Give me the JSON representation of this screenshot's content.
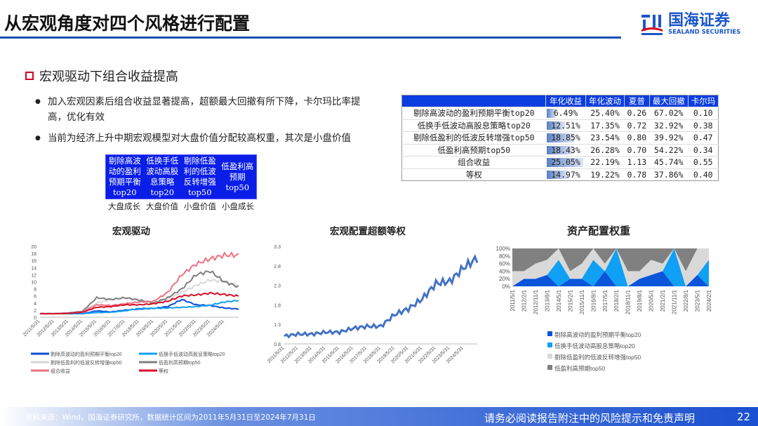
{
  "header": {
    "title": "从宏观角度对四个风格进行配置",
    "logo_cn": "国海证券",
    "logo_en": "SEALAND SECURITIES"
  },
  "subtitle": "宏观驱动下组合收益提高",
  "bullets": [
    "加入宏观因素后组合收益显著提高，超额最大回撤有所下降，卡尔玛比率提高，优化有效",
    "当前为经济上升中期宏观模型对大盘价值分配较高权重，其次是小盘价值"
  ],
  "style_boxes": [
    {
      "text": "剔除高波\n动的盈利\n预期平衡\ntop20",
      "label": "大盘成长"
    },
    {
      "text": "低换手低\n波动高股\n息策略\ntop20",
      "label": "大盘价值"
    },
    {
      "text": "剔除低盈\n利的低波\n反转增强\ntop50",
      "label": "小盘价值"
    },
    {
      "text": "低盈利高\n预期\ntop50",
      "label": "小盘成长"
    }
  ],
  "table": {
    "headers": [
      "",
      "年化收益",
      "年化波动",
      "夏普",
      "最大回撤",
      "卡尔玛"
    ],
    "rows": [
      [
        "剔除高波动的盈利预期平衡top20",
        "6.49%",
        "25.40%",
        "0.26",
        "67.02%",
        "0.10"
      ],
      [
        "低换手低波动高股息策略top20",
        "12.51%",
        "17.35%",
        "0.72",
        "32.92%",
        "0.38"
      ],
      [
        "剔除低盈利的低波反转增强top50",
        "18.85%",
        "23.54%",
        "0.80",
        "39.92%",
        "0.47"
      ],
      [
        "低盈利高预期top50",
        "18.43%",
        "26.28%",
        "0.70",
        "54.22%",
        "0.34"
      ],
      [
        "组合收益",
        "25.05%",
        "22.19%",
        "1.13",
        "45.74%",
        "0.55"
      ],
      [
        "等权",
        "14.97%",
        "19.22%",
        "0.78",
        "37.86%",
        "0.40"
      ]
    ]
  },
  "chart_data": [
    {
      "type": "line",
      "title": "宏观驱动",
      "ylim": [
        0,
        20
      ],
      "yticks": [
        "0",
        "2",
        "4",
        "6",
        "8",
        "10",
        "12",
        "14",
        "16",
        "18",
        "20"
      ],
      "x": [
        "2011/5/31",
        "2012/5/31",
        "2013/5/31",
        "2014/5/31",
        "2015/5/31",
        "2016/5/31",
        "2017/5/31",
        "2018/5/31",
        "2019/5/31",
        "2020/5/31",
        "2021/5/31",
        "2022/5/31",
        "2023/5/31",
        "2024/5/31",
        "2024/7/31"
      ],
      "xticks": [
        "2011/5/31",
        "2012/5/31",
        "2013/5/31",
        "2014/5/31",
        "2015/5/31",
        "2016/5/31",
        "2017/5/31",
        "2018/5/31",
        "2019/5/31",
        "2020/5/31",
        "2021/5/31",
        "2022/5/31",
        "2023/5/31",
        "2024/5/31"
      ],
      "legend": "bottom",
      "series": [
        {
          "name": "剔除高波动的盈利预期平衡top20",
          "color": "#0a4fd8",
          "values": [
            1,
            1,
            1,
            1,
            1.8,
            1.5,
            2,
            2.3,
            2.5,
            3,
            5,
            3.5,
            3.3,
            2.6,
            2.3
          ]
        },
        {
          "name": "低换手低波动高股息策略top20",
          "color": "#10a0f0",
          "values": [
            1,
            1,
            1,
            1,
            1.3,
            1.4,
            1.8,
            2.5,
            2.5,
            2.6,
            2.8,
            3,
            3.4,
            4.3,
            4.7
          ]
        },
        {
          "name": "剔除低盈利的低波反转增强top50",
          "color": "#d9d9d9",
          "values": [
            1,
            1,
            1.2,
            1.5,
            4,
            5,
            5.5,
            5,
            4,
            5,
            7,
            9,
            10.5,
            10,
            9
          ]
        },
        {
          "name": "低盈利高预期top50",
          "color": "#808080",
          "values": [
            1,
            1,
            1.2,
            1.7,
            5.5,
            5,
            5.5,
            4.8,
            4,
            5.5,
            8,
            12,
            13,
            10,
            8.5
          ]
        },
        {
          "name": "组合收益",
          "color": "#f07080",
          "values": [
            1,
            1,
            1.1,
            1.5,
            3.5,
            3.3,
            3.8,
            4.3,
            4.5,
            7,
            12,
            15,
            16.5,
            17.5,
            17.5
          ]
        },
        {
          "name": "等权",
          "color": "#d8102a",
          "values": [
            1,
            1,
            1.1,
            1.4,
            2.8,
            3,
            3.5,
            3.5,
            3.8,
            4.5,
            6,
            6.3,
            6.8,
            6.4,
            6
          ]
        }
      ]
    },
    {
      "type": "line",
      "title": "宏观配置超额等权",
      "ylim": [
        0.8,
        3.3
      ],
      "yticks": [
        "0.8",
        "1.3",
        "1.8",
        "2.3",
        "2.8",
        "3.3"
      ],
      "x": [
        "2011/5/31",
        "2012/5/31",
        "2013/5/31",
        "2014/5/31",
        "2015/5/31",
        "2016/5/31",
        "2017/5/31",
        "2018/5/31",
        "2019/5/31",
        "2020/5/31",
        "2021/5/31",
        "2022/5/31",
        "2023/5/31",
        "2024/5/31",
        "2024/7/31"
      ],
      "xticks": [
        "2011/5/31",
        "2012/5/31",
        "2013/5/31",
        "2014/5/31",
        "2015/5/31",
        "2016/5/31",
        "2017/5/31",
        "2018/5/31",
        "2019/5/31",
        "2020/5/31",
        "2021/5/31",
        "2022/5/31",
        "2023/5/31",
        "2024/5/31"
      ],
      "series": [
        {
          "color": "#4472c4",
          "values": [
            1.0,
            1.05,
            1.05,
            1.1,
            1.1,
            1.2,
            1.25,
            1.25,
            1.55,
            1.7,
            1.95,
            2.35,
            2.4,
            2.75,
            3.0
          ]
        }
      ]
    },
    {
      "type": "area",
      "title": "资产配置权重",
      "stacked": true,
      "ylim": [
        0,
        100
      ],
      "yticks": [
        "0%",
        "20%",
        "40%",
        "60%",
        "80%",
        "100%"
      ],
      "x": [
        "2011/5/1",
        "2012/2/1",
        "2012/11/1",
        "2013/8/1",
        "2014/5/1",
        "2015/2/1",
        "2015/11/1",
        "2016/8/1",
        "2017/5/1",
        "2018/2/1",
        "2018/11/1",
        "2019/8/1",
        "2020/5/1",
        "2021/2/1",
        "2021/11/1",
        "2022/8/1",
        "2023/5/1",
        "2024/2/1"
      ],
      "legend": "bottom",
      "series": [
        {
          "name": "剔除高波动的盈利预期平衡top20",
          "color": "#0a55d8",
          "values": [
            0,
            20,
            20,
            30,
            0,
            20,
            20,
            0,
            40,
            0,
            0,
            20,
            30,
            40,
            0,
            0,
            30,
            0
          ]
        },
        {
          "name": "低换手低波动高股息策略top20",
          "color": "#10a0f5",
          "values": [
            0,
            0,
            0,
            0,
            70,
            0,
            0,
            70,
            0,
            100,
            0,
            0,
            0,
            0,
            100,
            0,
            0,
            70
          ]
        },
        {
          "name": "剔除低盈利的低波反转增强top50",
          "color": "#d9d9d9",
          "values": [
            40,
            20,
            40,
            40,
            30,
            20,
            40,
            30,
            20,
            0,
            40,
            20,
            40,
            20,
            0,
            40,
            70,
            30
          ]
        },
        {
          "name": "低盈利高预期top50",
          "color": "#808080",
          "values": [
            60,
            60,
            40,
            30,
            0,
            60,
            40,
            0,
            40,
            0,
            60,
            60,
            30,
            40,
            0,
            60,
            0,
            0
          ]
        }
      ]
    }
  ],
  "footer": {
    "source": "资料来源：Wind，国海证券研究所，数据统计区间为2011年5月31日至2024年7月31日",
    "disclaimer": "请务必阅读报告附注中的风险提示和免责声明",
    "page": "22"
  }
}
